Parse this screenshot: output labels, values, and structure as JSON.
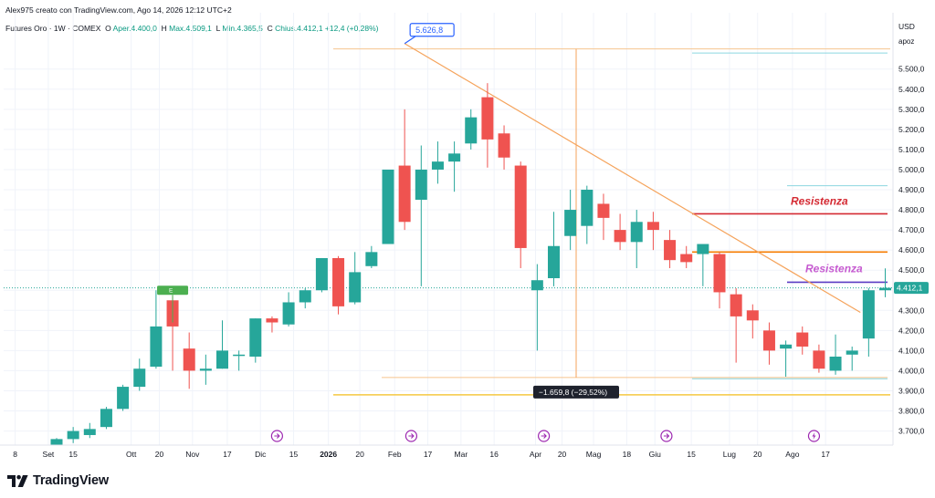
{
  "header": {
    "credit": "Alex975 creato con TradingView.com, Ago 14, 2026 12:12 UTC+2",
    "symbol": "Futures Oro · 1W · COMEX",
    "o_label": "O",
    "o_value": "Aper.4.400,0",
    "h_label": "H",
    "h_value": "Max.4.509,1",
    "l_label": "L",
    "l_value": "Min.4.365,5",
    "c_label": "C",
    "c_value": "Chius.4.412,1",
    "change": "+12,4 (+0,28%)"
  },
  "price_axis": {
    "currency": "USD",
    "currency_sub": "apoz",
    "current_price_label": "4.412,1"
  },
  "annotations": {
    "peak_label": "5.626,8",
    "drop_label": "−1.659,8 (−29,52%)",
    "res1_label": "Resistenza",
    "res2_label": "Resistenza",
    "earn_label": "E"
  },
  "brand": {
    "name": "TradingView"
  },
  "colors": {
    "up": "#26a69a",
    "down": "#ef5350",
    "trendline": "#f5a35b",
    "res_red": "#d42a33",
    "res_orange": "#f57c00",
    "res_purple": "#5b3cc4",
    "label_purple": "#c65bd0",
    "support_yellow": "#f5c842",
    "cyan": "#8cd6e0",
    "peak_line": "#f6c48e",
    "event": "#9c27b0"
  },
  "chart_data": {
    "type": "candlestick",
    "title": "Futures Oro · 1W · COMEX",
    "y_unit": "USD/apoz",
    "ylim": [
      3630,
      5780
    ],
    "y_ticks": [
      3700,
      3800,
      3900,
      4000,
      4100,
      4200,
      4300,
      4400,
      4500,
      4600,
      4700,
      4800,
      4900,
      5000,
      5100,
      5200,
      5300,
      5400,
      5500
    ],
    "y_tick_labels": [
      "3.700,0",
      "3.800,0",
      "3.900,0",
      "4.000,0",
      "4.100,0",
      "4.200,0",
      "4.300,0",
      "4.400,0",
      "4.500,0",
      "4.600,0",
      "4.700,0",
      "4.800,0",
      "4.900,0",
      "5.000,0",
      "5.100,0",
      "5.200,0",
      "5.300,0",
      "5.400,0",
      "5.500,0"
    ],
    "x_ticks": [
      {
        "label": "8",
        "bar": -2.5
      },
      {
        "label": "Set",
        "bar": -0.5
      },
      {
        "label": "15",
        "bar": 1
      },
      {
        "label": "Ott",
        "bar": 4.5
      },
      {
        "label": "20",
        "bar": 6.2
      },
      {
        "label": "Nov",
        "bar": 8.2
      },
      {
        "label": "17",
        "bar": 10.3
      },
      {
        "label": "Dic",
        "bar": 12.3
      },
      {
        "label": "15",
        "bar": 14.3
      },
      {
        "label": "2026",
        "bar": 16.4,
        "bold": true
      },
      {
        "label": "20",
        "bar": 18.3
      },
      {
        "label": "Feb",
        "bar": 20.4
      },
      {
        "label": "17",
        "bar": 22.4
      },
      {
        "label": "Mar",
        "bar": 24.4
      },
      {
        "label": "16",
        "bar": 26.4
      },
      {
        "label": "Apr",
        "bar": 28.9
      },
      {
        "label": "20",
        "bar": 30.5
      },
      {
        "label": "Mag",
        "bar": 32.4
      },
      {
        "label": "18",
        "bar": 34.4
      },
      {
        "label": "Giu",
        "bar": 36.1
      },
      {
        "label": "15",
        "bar": 38.3
      },
      {
        "label": "Lug",
        "bar": 40.6
      },
      {
        "label": "20",
        "bar": 42.3
      },
      {
        "label": "Ago",
        "bar": 44.4
      },
      {
        "label": "17",
        "bar": 46.4
      }
    ],
    "candles": [
      {
        "o": 3630,
        "h": 3665,
        "l": 3630,
        "c": 3660
      },
      {
        "o": 3660,
        "h": 3720,
        "l": 3640,
        "c": 3700
      },
      {
        "o": 3680,
        "h": 3740,
        "l": 3665,
        "c": 3710
      },
      {
        "o": 3720,
        "h": 3820,
        "l": 3710,
        "c": 3810
      },
      {
        "o": 3810,
        "h": 3930,
        "l": 3800,
        "c": 3920
      },
      {
        "o": 3920,
        "h": 4060,
        "l": 3900,
        "c": 4010
      },
      {
        "o": 4020,
        "h": 4400,
        "l": 4010,
        "c": 4220
      },
      {
        "o": 4350,
        "h": 4370,
        "l": 4000,
        "c": 4220
      },
      {
        "o": 4110,
        "h": 4190,
        "l": 3910,
        "c": 4000
      },
      {
        "o": 4000,
        "h": 4080,
        "l": 3930,
        "c": 4010
      },
      {
        "o": 4010,
        "h": 4250,
        "l": 4010,
        "c": 4100
      },
      {
        "o": 4080,
        "h": 4100,
        "l": 4000,
        "c": 4080
      },
      {
        "o": 4070,
        "h": 4260,
        "l": 4040,
        "c": 4260
      },
      {
        "o": 4260,
        "h": 4270,
        "l": 4190,
        "c": 4240
      },
      {
        "o": 4230,
        "h": 4390,
        "l": 4220,
        "c": 4340
      },
      {
        "o": 4340,
        "h": 4410,
        "l": 4310,
        "c": 4400
      },
      {
        "o": 4400,
        "h": 4560,
        "l": 4390,
        "c": 4560
      },
      {
        "o": 4560,
        "h": 4570,
        "l": 4280,
        "c": 4320
      },
      {
        "o": 4340,
        "h": 4590,
        "l": 4330,
        "c": 4490
      },
      {
        "o": 4520,
        "h": 4620,
        "l": 4510,
        "c": 4590
      },
      {
        "o": 4630,
        "h": 5000,
        "l": 4630,
        "c": 5000
      },
      {
        "o": 5020,
        "h": 5300,
        "l": 4700,
        "c": 4740
      },
      {
        "o": 4850,
        "h": 5120,
        "l": 4420,
        "c": 5000
      },
      {
        "o": 5000,
        "h": 5140,
        "l": 4930,
        "c": 5040
      },
      {
        "o": 5040,
        "h": 5140,
        "l": 4890,
        "c": 5080
      },
      {
        "o": 5130,
        "h": 5300,
        "l": 5100,
        "c": 5260
      },
      {
        "o": 5360,
        "h": 5430,
        "l": 5010,
        "c": 5150
      },
      {
        "o": 5180,
        "h": 5220,
        "l": 5000,
        "c": 5060
      },
      {
        "o": 5020,
        "h": 5040,
        "l": 4510,
        "c": 4610
      },
      {
        "o": 4400,
        "h": 4530,
        "l": 4100,
        "c": 4450
      },
      {
        "o": 4460,
        "h": 4790,
        "l": 4420,
        "c": 4620
      },
      {
        "o": 4670,
        "h": 4900,
        "l": 4600,
        "c": 4800
      },
      {
        "o": 4720,
        "h": 4920,
        "l": 4630,
        "c": 4900
      },
      {
        "o": 4830,
        "h": 4880,
        "l": 4650,
        "c": 4760
      },
      {
        "o": 4700,
        "h": 4780,
        "l": 4600,
        "c": 4640
      },
      {
        "o": 4640,
        "h": 4800,
        "l": 4510,
        "c": 4740
      },
      {
        "o": 4740,
        "h": 4790,
        "l": 4600,
        "c": 4700
      },
      {
        "o": 4650,
        "h": 4700,
        "l": 4510,
        "c": 4550
      },
      {
        "o": 4580,
        "h": 4620,
        "l": 4510,
        "c": 4540
      },
      {
        "o": 4580,
        "h": 4620,
        "l": 4420,
        "c": 4630
      },
      {
        "o": 4580,
        "h": 4590,
        "l": 4310,
        "c": 4390
      },
      {
        "o": 4380,
        "h": 4410,
        "l": 4040,
        "c": 4270
      },
      {
        "o": 4300,
        "h": 4330,
        "l": 4160,
        "c": 4250
      },
      {
        "o": 4200,
        "h": 4240,
        "l": 4030,
        "c": 4100
      },
      {
        "o": 4110,
        "h": 4150,
        "l": 3970,
        "c": 4130
      },
      {
        "o": 4190,
        "h": 4220,
        "l": 4080,
        "c": 4120
      },
      {
        "o": 4100,
        "h": 4130,
        "l": 3990,
        "c": 4010
      },
      {
        "o": 4000,
        "h": 4180,
        "l": 3980,
        "c": 4070
      },
      {
        "o": 4080,
        "h": 4120,
        "l": 4000,
        "c": 4100
      },
      {
        "o": 4160,
        "h": 4410,
        "l": 4070,
        "c": 4400
      },
      {
        "o": 4400,
        "h": 4509.1,
        "l": 4365.5,
        "c": 4412.1
      }
    ],
    "levels": {
      "peak": 5626.8,
      "peak_top": 5600,
      "cyan_top": 5580,
      "support_low": 3966,
      "support_yellow": 3880,
      "cyan_low": 3960,
      "res_red": 4780,
      "res_orange": 4590,
      "res_purple": 4440,
      "cyan_mid": 4920,
      "current": 4412.1
    },
    "trendline": {
      "start_bar": 21,
      "start_price": 5626.8,
      "end_bar": 48.5,
      "end_price": 4290
    },
    "event_bars": [
      13.3,
      21.4,
      29.4,
      36.8,
      45.7
    ],
    "earn_bar": 7
  }
}
